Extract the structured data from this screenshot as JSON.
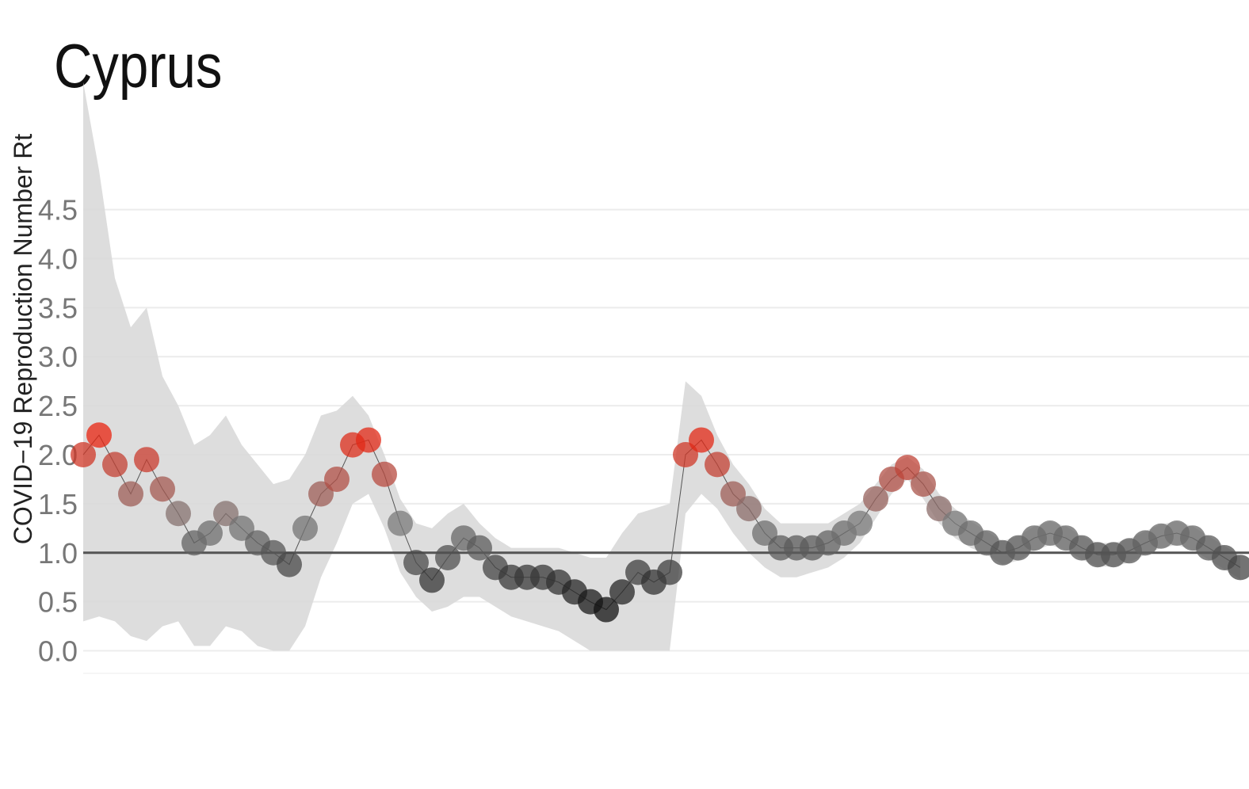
{
  "chart_data": {
    "type": "line",
    "title": "Cyprus",
    "y_label": "COVID−19 Reproduction Number Rt",
    "categories": [
      null,
      null,
      null,
      null,
      null,
      null,
      null,
      null,
      null,
      null,
      null,
      null,
      null,
      null,
      null,
      null,
      null,
      null,
      null,
      null,
      null,
      null,
      null,
      null,
      null,
      null,
      null,
      null,
      null,
      null,
      null,
      null,
      null,
      null,
      null,
      null,
      null,
      null,
      null,
      null,
      null,
      null,
      null,
      null,
      null,
      null,
      null,
      null,
      null,
      null,
      null,
      null,
      null,
      null,
      null,
      null,
      null,
      null,
      null,
      null,
      null,
      null,
      null,
      null,
      null,
      null,
      null,
      null,
      null,
      null,
      null,
      null,
      null,
      null
    ],
    "values": [
      2.0,
      2.2,
      1.9,
      1.6,
      1.95,
      1.65,
      1.4,
      1.1,
      1.2,
      1.4,
      1.25,
      1.1,
      1.0,
      0.88,
      1.25,
      1.6,
      1.75,
      2.1,
      2.15,
      1.8,
      1.3,
      0.9,
      0.72,
      0.95,
      1.15,
      1.05,
      0.85,
      0.75,
      0.75,
      0.75,
      0.7,
      0.6,
      0.5,
      0.42,
      0.6,
      0.8,
      0.7,
      0.8,
      2.0,
      2.15,
      1.9,
      1.6,
      1.45,
      1.2,
      1.05,
      1.05,
      1.05,
      1.1,
      1.2,
      1.3,
      1.55,
      1.75,
      1.87,
      1.7,
      1.45,
      1.3,
      1.2,
      1.1,
      1.0,
      1.05,
      1.15,
      1.2,
      1.15,
      1.05,
      0.98,
      0.98,
      1.02,
      1.1,
      1.17,
      1.2,
      1.15,
      1.05,
      0.95,
      0.85
    ],
    "lower": [
      0.3,
      0.35,
      0.3,
      0.15,
      0.1,
      0.25,
      0.3,
      0.05,
      0.05,
      0.25,
      0.2,
      0.05,
      0.0,
      0.0,
      0.25,
      0.75,
      1.1,
      1.5,
      1.6,
      1.25,
      0.8,
      0.55,
      0.4,
      0.45,
      0.55,
      0.55,
      0.45,
      0.35,
      0.3,
      0.25,
      0.2,
      0.1,
      0.0,
      0.0,
      0.0,
      0.0,
      0.0,
      0.0,
      1.4,
      1.6,
      1.45,
      1.2,
      1.0,
      0.85,
      0.75,
      0.75,
      0.8,
      0.85,
      0.95,
      1.1,
      1.35,
      1.6,
      1.75,
      1.55,
      1.3,
      1.15,
      1.05,
      0.98,
      0.88,
      0.92,
      1.02,
      1.08,
      1.03,
      0.93,
      0.86,
      0.86,
      0.9,
      0.98,
      1.05,
      1.08,
      1.03,
      0.93,
      0.83,
      0.73
    ],
    "upper": [
      5.8,
      4.9,
      3.8,
      3.3,
      3.5,
      2.8,
      2.5,
      2.1,
      2.2,
      2.4,
      2.1,
      1.9,
      1.7,
      1.75,
      2.0,
      2.4,
      2.45,
      2.6,
      2.4,
      2.0,
      1.55,
      1.3,
      1.25,
      1.4,
      1.5,
      1.3,
      1.15,
      1.05,
      1.05,
      1.05,
      1.05,
      1.0,
      0.95,
      0.95,
      1.2,
      1.4,
      1.45,
      1.5,
      2.75,
      2.6,
      2.2,
      1.9,
      1.7,
      1.45,
      1.3,
      1.3,
      1.3,
      1.3,
      1.4,
      1.5,
      1.7,
      1.9,
      1.98,
      1.85,
      1.6,
      1.45,
      1.32,
      1.22,
      1.12,
      1.17,
      1.27,
      1.32,
      1.27,
      1.17,
      1.1,
      1.1,
      1.14,
      1.22,
      1.29,
      1.32,
      1.27,
      1.17,
      1.07,
      0.97
    ],
    "hline": 1,
    "ylim": [
      -0.23,
      5.83
    ],
    "yticks": [
      {
        "value": 0,
        "label": "0.0"
      },
      0.5,
      {
        "value": 1,
        "label": "1.0"
      },
      1.5,
      {
        "value": 2,
        "label": "2.0"
      },
      2.5,
      {
        "value": 3,
        "label": "3.0"
      },
      3.5,
      {
        "value": 4,
        "label": "4.0"
      },
      4.5
    ],
    "grid": true,
    "color_low": "#111111",
    "color_mid": "#7a7a7a",
    "color_high": "#e8230f",
    "band_color": "#d9d9d9",
    "line_color": "#555555"
  }
}
